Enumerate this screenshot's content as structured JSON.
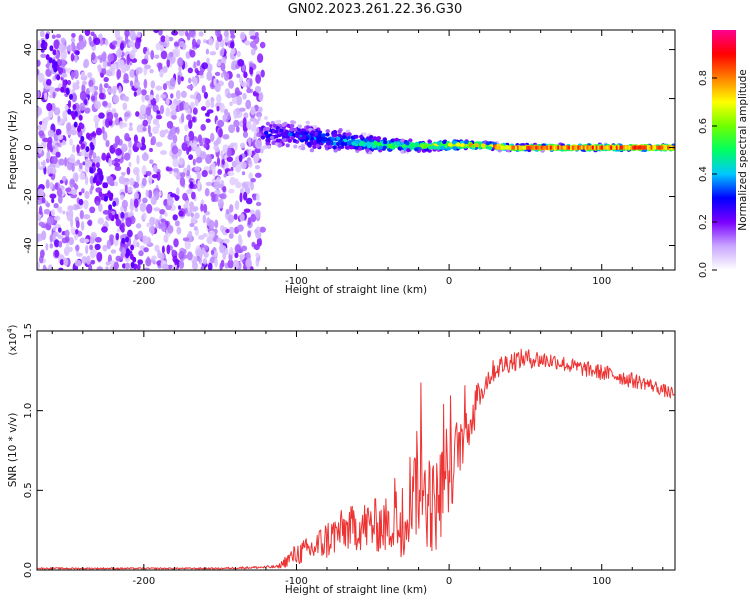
{
  "title": "GN02.2023.261.22.36.G30",
  "chart_data": [
    {
      "type": "heatmap",
      "xlabel": "Height of straight line (km)",
      "ylabel": "Frequency (Hz)",
      "xlim": [
        -270,
        148
      ],
      "ylim": [
        -50,
        48
      ],
      "x_ticks": [
        -200,
        -100,
        0,
        100
      ],
      "x_tick_labels": [
        "-200",
        "-100",
        "0",
        "100"
      ],
      "y_ticks": [
        -40,
        -20,
        0,
        20,
        40
      ],
      "y_tick_labels": [
        "-40",
        "-20",
        "0",
        "20",
        "40"
      ],
      "noise_region_x": [
        -270,
        -122
      ],
      "signal_ridge": {
        "x": [
          -122,
          -100,
          -80,
          -60,
          -40,
          -20,
          0,
          20,
          40,
          60,
          80,
          100,
          120,
          148
        ],
        "frequency": [
          6,
          5,
          3,
          2,
          1,
          0.5,
          1,
          1,
          0,
          0,
          0,
          0,
          0,
          0
        ],
        "spread_hz": [
          9,
          8,
          7,
          5,
          3.5,
          2.5,
          2.5,
          2,
          1.5,
          1.5,
          1.5,
          1.5,
          1.5,
          1.5
        ],
        "peak_amplitude": [
          0.25,
          0.3,
          0.35,
          0.45,
          0.55,
          0.65,
          0.7,
          0.75,
          0.85,
          0.9,
          0.9,
          0.9,
          0.9,
          0.85
        ]
      },
      "diagonal_feature": {
        "x": [
          -265,
          -205
        ],
        "frequency": [
          45,
          -50
        ]
      },
      "colorbar": {
        "label": "Normalized spectral amplitude",
        "range": [
          0,
          1
        ],
        "ticks": [
          0.0,
          0.2,
          0.4,
          0.6,
          0.8
        ],
        "tick_labels": [
          "0.0",
          "0.2",
          "0.4",
          "0.6",
          "0.8"
        ],
        "colors": [
          "#ffffff",
          "#c9a6ff",
          "#7a00ff",
          "#0000ff",
          "#00c8ff",
          "#00ff60",
          "#70ff00",
          "#ffff00",
          "#ff8000",
          "#ff0000",
          "#ff0090"
        ]
      }
    },
    {
      "type": "line",
      "xlabel": "Height of straight line (km)",
      "ylabel": "SNR (10 * v/v)",
      "y_multiplier": "(x10",
      "y_multiplier_exp": "4",
      "y_multiplier_close": ")",
      "xlim": [
        -270,
        148
      ],
      "ylim": [
        0,
        1.5
      ],
      "x_ticks": [
        -200,
        -100,
        0,
        100
      ],
      "x_tick_labels": [
        "-200",
        "-100",
        "0",
        "100"
      ],
      "y_ticks": [
        0.0,
        0.5,
        1.0,
        1.5
      ],
      "y_tick_labels": [
        "0.0",
        "0.5",
        "1.0",
        "1.5"
      ],
      "color": "#ee3333",
      "series": {
        "name": "SNR",
        "x": [
          -270,
          -200,
          -150,
          -112,
          -105,
          -100,
          -90,
          -80,
          -70,
          -60,
          -50,
          -40,
          -30,
          -25,
          -20,
          -15,
          -10,
          -5,
          0,
          5,
          10,
          15,
          20,
          25,
          30,
          40,
          50,
          60,
          70,
          80,
          90,
          100,
          110,
          120,
          130,
          140,
          148
        ],
        "values": [
          0.01,
          0.01,
          0.01,
          0.02,
          0.07,
          0.1,
          0.13,
          0.19,
          0.25,
          0.27,
          0.28,
          0.28,
          0.3,
          0.5,
          0.55,
          0.5,
          0.38,
          0.5,
          0.55,
          0.75,
          0.88,
          0.95,
          1.1,
          1.2,
          1.26,
          1.31,
          1.33,
          1.32,
          1.31,
          1.28,
          1.26,
          1.24,
          1.22,
          1.19,
          1.17,
          1.13,
          1.1
        ],
        "noise_amplitude": [
          0.005,
          0.005,
          0.005,
          0.01,
          0.05,
          0.07,
          0.09,
          0.13,
          0.13,
          0.15,
          0.17,
          0.18,
          0.22,
          0.3,
          0.35,
          0.35,
          0.3,
          0.3,
          0.25,
          0.2,
          0.18,
          0.15,
          0.1,
          0.08,
          0.07,
          0.07,
          0.06,
          0.06,
          0.05,
          0.05,
          0.05,
          0.05,
          0.05,
          0.05,
          0.04,
          0.04,
          0.04
        ]
      }
    }
  ]
}
